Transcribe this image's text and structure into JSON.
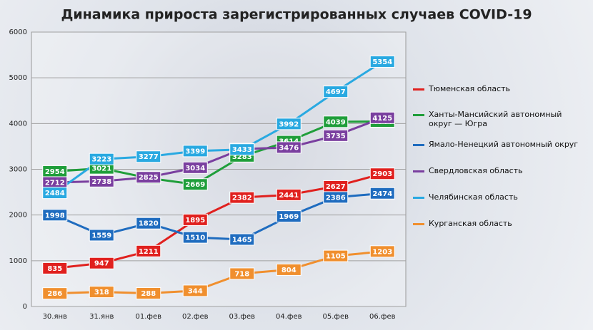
{
  "chart_data": {
    "type": "line",
    "title": "Динамика прироста зарегистрированных случаев COVID-19",
    "categories": [
      "30.янв",
      "31.янв",
      "01.фев",
      "02.фев",
      "03.фев",
      "04.фев",
      "05.фев",
      "06.фев"
    ],
    "ylim": [
      0,
      6000
    ],
    "yticks": [
      0,
      1000,
      2000,
      3000,
      4000,
      5000,
      6000
    ],
    "grid": true,
    "legend": "right",
    "series": [
      {
        "name": "Тюменская область",
        "color": "#e0201e",
        "values": [
          835,
          947,
          1211,
          1895,
          2382,
          2441,
          2627,
          2903
        ]
      },
      {
        "name": "Ханты-Мансийский автономный округ — Югра",
        "color": "#1f9e3a",
        "values": [
          2954,
          3021,
          2808,
          2669,
          3283,
          3614,
          4039,
          4044
        ]
      },
      {
        "name": "Ямало-Ненецкий автономный округ",
        "color": "#1f6cbf",
        "values": [
          1998,
          1559,
          1820,
          1510,
          1465,
          1969,
          2386,
          2474
        ]
      },
      {
        "name": "Свердловская область",
        "color": "#7a3f9f",
        "values": [
          2712,
          2738,
          2825,
          3034,
          3443,
          3476,
          3735,
          4125
        ]
      },
      {
        "name": "Челябинская область",
        "color": "#29a9e1",
        "values": [
          2484,
          3223,
          3277,
          3399,
          3433,
          3992,
          4697,
          5354
        ]
      },
      {
        "name": "Курганская область",
        "color": "#f08f2e",
        "values": [
          286,
          318,
          288,
          344,
          718,
          804,
          1105,
          1203
        ]
      }
    ]
  }
}
